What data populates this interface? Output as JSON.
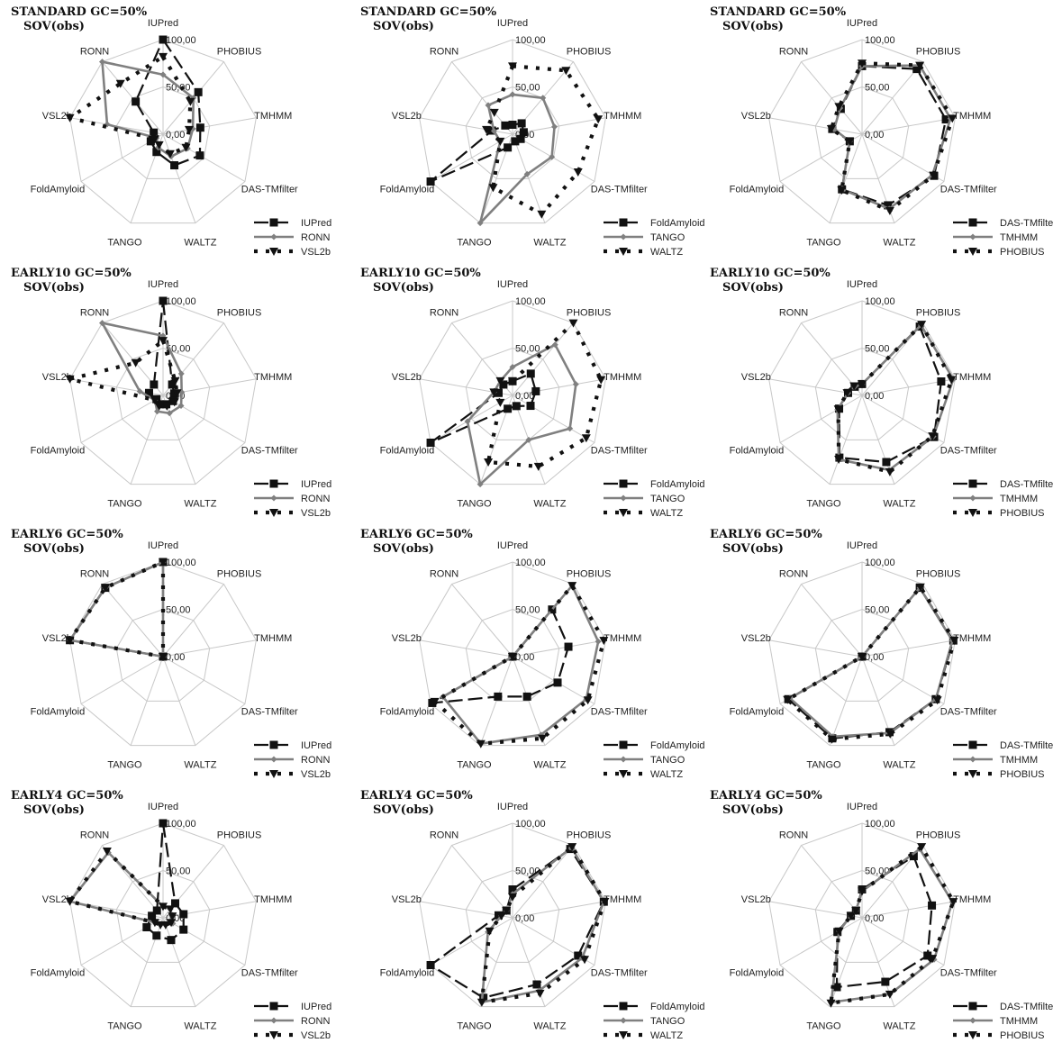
{
  "chart_data": [
    {
      "type": "radar",
      "title": "STANDARD GC=50%",
      "subtitle": "SOV(obs)",
      "axes": [
        "IUPred",
        "PHOBIUS",
        "TMHMM",
        "DAS-TMfilter",
        "WALTZ",
        "TANGO",
        "FoldAmyloid",
        "VSL2b",
        "RONN"
      ],
      "rlim": [
        0,
        100
      ],
      "ticks": [
        "0,00",
        "50,00",
        "100,00"
      ],
      "series": [
        {
          "name": "IUPred",
          "values": [
            100,
            58,
            40,
            45,
            35,
            20,
            15,
            10,
            45
          ]
        },
        {
          "name": "RONN",
          "values": [
            63,
            50,
            32,
            30,
            25,
            15,
            8,
            60,
            100
          ]
        },
        {
          "name": "VSL2b",
          "values": [
            82,
            45,
            28,
            28,
            22,
            12,
            10,
            100,
            70
          ]
        }
      ]
    },
    {
      "type": "radar",
      "title": "STANDARD GC=50%",
      "subtitle": "SOV(obs)",
      "axes": [
        "IUPred",
        "PHOBIUS",
        "TMHMM",
        "DAS-TMfilter",
        "WALTZ",
        "TANGO",
        "FoldAmyloid",
        "VSL2b",
        "RONN"
      ],
      "rlim": [
        0,
        100
      ],
      "ticks": [
        "0,00",
        "50,00",
        "100,00"
      ],
      "series": [
        {
          "name": "FoldAmyloid",
          "values": [
            10,
            15,
            12,
            10,
            8,
            15,
            100,
            22,
            12
          ]
        },
        {
          "name": "TANGO",
          "values": [
            42,
            50,
            45,
            48,
            45,
            100,
            15,
            20,
            40
          ]
        },
        {
          "name": "WALTZ",
          "values": [
            72,
            88,
            92,
            80,
            90,
            60,
            15,
            28,
            30
          ]
        }
      ]
    },
    {
      "type": "radar",
      "title": "STANDARD GC=50%",
      "subtitle": "SOV(obs)",
      "axes": [
        "IUPred",
        "PHOBIUS",
        "TMHMM",
        "DAS-TMfilter",
        "WALTZ",
        "TANGO",
        "FoldAmyloid",
        "VSL2b",
        "RONN"
      ],
      "rlim": [
        0,
        100
      ],
      "ticks": [
        "0,00",
        "50,00",
        "100,00"
      ],
      "series": [
        {
          "name": "DAS-TMfilter",
          "values": [
            72,
            90,
            90,
            88,
            80,
            62,
            15,
            32,
            35
          ]
        },
        {
          "name": "TMHMM",
          "values": [
            72,
            95,
            95,
            86,
            84,
            62,
            15,
            30,
            36
          ]
        },
        {
          "name": "PHOBIUS",
          "values": [
            75,
            95,
            97,
            87,
            86,
            63,
            15,
            33,
            38
          ]
        }
      ]
    },
    {
      "type": "radar",
      "title": "EARLY10 GC=50%",
      "subtitle": "SOV(obs)",
      "axes": [
        "IUPred",
        "PHOBIUS",
        "TMHMM",
        "DAS-TMfilter",
        "WALTZ",
        "TANGO",
        "FoldAmyloid",
        "VSL2b",
        "RONN"
      ],
      "rlim": [
        0,
        100
      ],
      "ticks": [
        "0,00",
        "50,00",
        "100,00"
      ],
      "series": [
        {
          "name": "IUPred",
          "values": [
            100,
            15,
            12,
            12,
            10,
            10,
            8,
            15,
            15
          ]
        },
        {
          "name": "RONN",
          "values": [
            63,
            30,
            20,
            22,
            20,
            18,
            10,
            25,
            100
          ]
        },
        {
          "name": "VSL2b",
          "values": [
            58,
            20,
            15,
            14,
            12,
            12,
            10,
            100,
            45
          ]
        }
      ]
    },
    {
      "type": "radar",
      "title": "EARLY10 GC=50%",
      "subtitle": "SOV(obs)",
      "axes": [
        "IUPred",
        "PHOBIUS",
        "TMHMM",
        "DAS-TMfilter",
        "WALTZ",
        "TANGO",
        "FoldAmyloid",
        "VSL2b",
        "RONN"
      ],
      "rlim": [
        0,
        100
      ],
      "ticks": [
        "0,00",
        "50,00",
        "100,00"
      ],
      "series": [
        {
          "name": "FoldAmyloid",
          "values": [
            15,
            30,
            25,
            22,
            12,
            15,
            100,
            15,
            15
          ]
        },
        {
          "name": "TANGO",
          "values": [
            30,
            70,
            68,
            70,
            50,
            100,
            55,
            20,
            20
          ]
        },
        {
          "name": "WALTZ",
          "values": [
            15,
            100,
            95,
            90,
            80,
            75,
            15,
            20,
            20
          ]
        }
      ]
    },
    {
      "type": "radar",
      "title": "EARLY10 GC=50%",
      "subtitle": "SOV(obs)",
      "axes": [
        "IUPred",
        "PHOBIUS",
        "TMHMM",
        "DAS-TMfilter",
        "WALTZ",
        "TANGO",
        "FoldAmyloid",
        "VSL2b",
        "RONN"
      ],
      "rlim": [
        0,
        100
      ],
      "ticks": [
        "0,00",
        "50,00",
        "100,00"
      ],
      "series": [
        {
          "name": "DAS-TMfilter",
          "values": [
            12,
            95,
            85,
            88,
            75,
            70,
            28,
            15,
            12
          ]
        },
        {
          "name": "TMHMM",
          "values": [
            12,
            97,
            98,
            87,
            84,
            72,
            30,
            15,
            12
          ]
        },
        {
          "name": "PHOBIUS",
          "values": [
            12,
            98,
            96,
            86,
            86,
            72,
            29,
            16,
            13
          ]
        }
      ]
    },
    {
      "type": "radar",
      "title": "EARLY6 GC=50%",
      "subtitle": "SOV(obs)",
      "axes": [
        "IUPred",
        "PHOBIUS",
        "TMHMM",
        "DAS-TMfilter",
        "WALTZ",
        "TANGO",
        "FoldAmyloid",
        "VSL2b",
        "RONN"
      ],
      "rlim": [
        0,
        100
      ],
      "ticks": [
        "0,00",
        "50,00",
        "100,00"
      ],
      "series": [
        {
          "name": "IUPred",
          "values": [
            100,
            0,
            0,
            0,
            0,
            0,
            0,
            100,
            95
          ]
        },
        {
          "name": "RONN",
          "values": [
            100,
            0,
            0,
            0,
            0,
            0,
            0,
            100,
            95
          ]
        },
        {
          "name": "VSL2b",
          "values": [
            100,
            0,
            0,
            0,
            0,
            0,
            0,
            100,
            95
          ]
        }
      ]
    },
    {
      "type": "radar",
      "title": "EARLY6 GC=50%",
      "subtitle": "SOV(obs)",
      "axes": [
        "IUPred",
        "PHOBIUS",
        "TMHMM",
        "DAS-TMfilter",
        "WALTZ",
        "TANGO",
        "FoldAmyloid",
        "VSL2b",
        "RONN"
      ],
      "rlim": [
        0,
        100
      ],
      "ticks": [
        "0,00",
        "50,00",
        "100,00"
      ],
      "series": [
        {
          "name": "FoldAmyloid",
          "values": [
            0,
            65,
            60,
            55,
            45,
            45,
            98,
            0,
            0
          ]
        },
        {
          "name": "TANGO",
          "values": [
            0,
            98,
            92,
            90,
            88,
            98,
            85,
            0,
            0
          ]
        },
        {
          "name": "WALTZ",
          "values": [
            0,
            98,
            98,
            92,
            92,
            98,
            95,
            0,
            0
          ]
        }
      ]
    },
    {
      "type": "radar",
      "title": "EARLY6 GC=50%",
      "subtitle": "SOV(obs)",
      "axes": [
        "IUPred",
        "PHOBIUS",
        "TMHMM",
        "DAS-TMfilter",
        "WALTZ",
        "TANGO",
        "FoldAmyloid",
        "VSL2b",
        "RONN"
      ],
      "rlim": [
        0,
        100
      ],
      "ticks": [
        "0,00",
        "50,00",
        "100,00"
      ],
      "series": [
        {
          "name": "DAS-TMfilter",
          "values": [
            0,
            95,
            98,
            90,
            85,
            92,
            90,
            0,
            0
          ]
        },
        {
          "name": "TMHMM",
          "values": [
            0,
            95,
            97,
            90,
            86,
            90,
            88,
            0,
            0
          ]
        },
        {
          "name": "PHOBIUS",
          "values": [
            0,
            96,
            99,
            92,
            87,
            93,
            91,
            0,
            0
          ]
        }
      ]
    },
    {
      "type": "radar",
      "title": "EARLY4 GC=50%",
      "subtitle": "SOV(obs)",
      "axes": [
        "IUPred",
        "PHOBIUS",
        "TMHMM",
        "DAS-TMfilter",
        "WALTZ",
        "TANGO",
        "FoldAmyloid",
        "VSL2b",
        "RONN"
      ],
      "rlim": [
        0,
        100
      ],
      "ticks": [
        "0,00",
        "50,00",
        "100,00"
      ],
      "series": [
        {
          "name": "IUPred",
          "values": [
            100,
            20,
            22,
            25,
            25,
            20,
            20,
            12,
            10
          ]
        },
        {
          "name": "RONN",
          "values": [
            12,
            12,
            10,
            12,
            8,
            8,
            10,
            100,
            90
          ]
        },
        {
          "name": "VSL2b",
          "values": [
            12,
            12,
            10,
            10,
            8,
            8,
            10,
            100,
            92
          ]
        }
      ]
    },
    {
      "type": "radar",
      "title": "EARLY4 GC=50%",
      "subtitle": "SOV(obs)",
      "axes": [
        "IUPred",
        "PHOBIUS",
        "TMHMM",
        "DAS-TMfilter",
        "WALTZ",
        "TANGO",
        "FoldAmyloid",
        "VSL2b",
        "RONN"
      ],
      "rlim": [
        0,
        100
      ],
      "ticks": [
        "0,00",
        "50,00",
        "100,00"
      ],
      "series": [
        {
          "name": "FoldAmyloid",
          "values": [
            30,
            95,
            98,
            80,
            75,
            90,
            100,
            15,
            10
          ]
        },
        {
          "name": "TANGO",
          "values": [
            25,
            97,
            98,
            85,
            82,
            95,
            30,
            12,
            10
          ]
        },
        {
          "name": "WALTZ",
          "values": [
            22,
            98,
            99,
            88,
            85,
            95,
            28,
            12,
            10
          ]
        }
      ]
    },
    {
      "type": "radar",
      "title": "EARLY4 GC=50%",
      "subtitle": "SOV(obs)",
      "axes": [
        "IUPred",
        "PHOBIUS",
        "TMHMM",
        "DAS-TMfilter",
        "WALTZ",
        "TANGO",
        "FoldAmyloid",
        "VSL2b",
        "RONN"
      ],
      "rlim": [
        0,
        100
      ],
      "ticks": [
        "0,00",
        "50,00",
        "100,00"
      ],
      "series": [
        {
          "name": "DAS-TMfilter",
          "values": [
            30,
            85,
            75,
            80,
            72,
            78,
            30,
            12,
            10
          ]
        },
        {
          "name": "TMHMM",
          "values": [
            28,
            95,
            97,
            88,
            86,
            95,
            28,
            12,
            10
          ]
        },
        {
          "name": "PHOBIUS",
          "values": [
            28,
            98,
            98,
            86,
            86,
            96,
            28,
            12,
            10
          ]
        }
      ]
    }
  ]
}
